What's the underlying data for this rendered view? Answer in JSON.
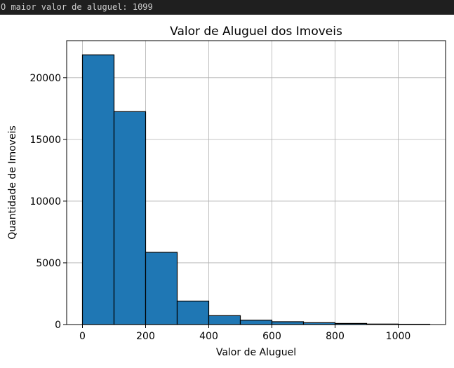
{
  "console": {
    "output_line": "O maior valor de aluguel: 1099"
  },
  "colors": {
    "console_background": "#1f1f1f",
    "console_text": "#cccccc",
    "bar_fill": "#1f77b4",
    "bar_edge": "#000000",
    "grid": "#b0b0b0"
  },
  "chart_data": {
    "type": "bar",
    "title": "Valor de Aluguel dos Imoveis",
    "xlabel": "Valor de Aluguel",
    "ylabel": "Quantidade de Imoveis",
    "xlim": [
      -50,
      1150
    ],
    "ylim": [
      0,
      23000
    ],
    "grid": true,
    "bins": [
      {
        "start": 0,
        "end": 100,
        "count": 21850
      },
      {
        "start": 100,
        "end": 200,
        "count": 17250
      },
      {
        "start": 200,
        "end": 300,
        "count": 5850
      },
      {
        "start": 300,
        "end": 400,
        "count": 1900
      },
      {
        "start": 400,
        "end": 500,
        "count": 720
      },
      {
        "start": 500,
        "end": 600,
        "count": 350
      },
      {
        "start": 600,
        "end": 700,
        "count": 230
      },
      {
        "start": 700,
        "end": 800,
        "count": 150
      },
      {
        "start": 800,
        "end": 900,
        "count": 90
      },
      {
        "start": 900,
        "end": 1000,
        "count": 40
      },
      {
        "start": 1000,
        "end": 1100,
        "count": 25
      }
    ],
    "x_ticks": [
      0,
      200,
      400,
      600,
      800,
      1000
    ],
    "y_ticks": [
      0,
      5000,
      10000,
      15000,
      20000
    ]
  }
}
